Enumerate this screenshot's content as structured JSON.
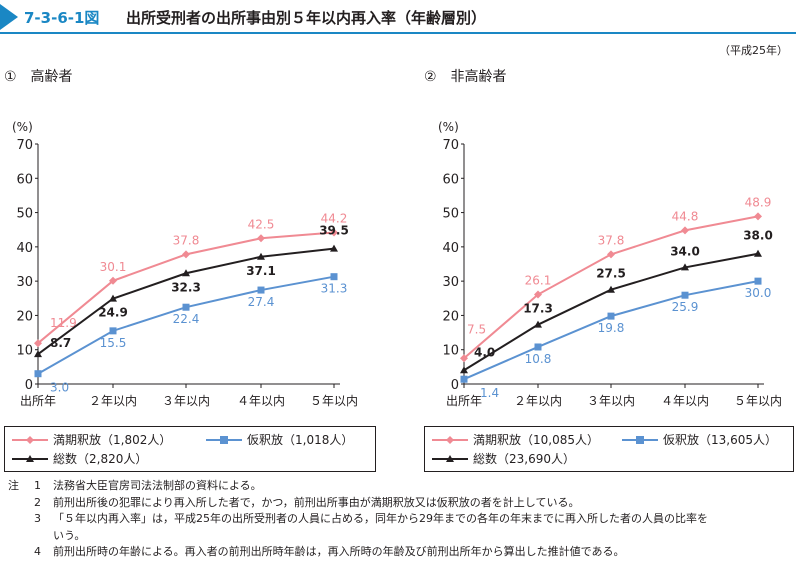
{
  "figure": {
    "number": "7-3-6-1図",
    "title": "出所受刑者の出所事由別５年以内再入率（年齢層別）",
    "year_note": "（平成25年）"
  },
  "colors": {
    "accent": "#1a87c4",
    "pink": "#f08a93",
    "blue": "#5b92d1",
    "black": "#231f20"
  },
  "chart_data": [
    {
      "type": "line",
      "panel_title": "①　高齢者",
      "ylabel": "(%)",
      "ylim": [
        0,
        70
      ],
      "yticks": [
        "0",
        "10",
        "20",
        "30",
        "40",
        "50",
        "60",
        "70"
      ],
      "categories": [
        "出所年",
        "２年以内",
        "３年以内",
        "４年以内",
        "５年以内"
      ],
      "series": [
        {
          "name": "満期釈放（1,802人）",
          "color": "pink",
          "values": [
            11.9,
            30.1,
            37.8,
            42.5,
            44.2
          ],
          "labels": [
            "11.9",
            "30.1",
            "37.8",
            "42.5",
            "44.2"
          ]
        },
        {
          "name": "仮釈放（1,018人）",
          "color": "blue",
          "values": [
            3.0,
            15.5,
            22.4,
            27.4,
            31.3
          ],
          "labels": [
            "3.0",
            "15.5",
            "22.4",
            "27.4",
            "31.3"
          ]
        },
        {
          "name": "総数（2,820人）",
          "color": "black",
          "values": [
            8.7,
            24.9,
            32.3,
            37.1,
            39.5
          ],
          "labels": [
            "8.7",
            "24.9",
            "32.3",
            "37.1",
            "39.5"
          ]
        }
      ]
    },
    {
      "type": "line",
      "panel_title": "②　非高齢者",
      "ylabel": "(%)",
      "ylim": [
        0,
        70
      ],
      "yticks": [
        "0",
        "10",
        "20",
        "30",
        "40",
        "50",
        "60",
        "70"
      ],
      "categories": [
        "出所年",
        "２年以内",
        "３年以内",
        "４年以内",
        "５年以内"
      ],
      "series": [
        {
          "name": "満期釈放（10,085人）",
          "color": "pink",
          "values": [
            7.5,
            26.1,
            37.8,
            44.8,
            48.9
          ],
          "labels": [
            "7.5",
            "26.1",
            "37.8",
            "44.8",
            "48.9"
          ]
        },
        {
          "name": "仮釈放（13,605人）",
          "color": "blue",
          "values": [
            1.4,
            10.8,
            19.8,
            25.9,
            30.0
          ],
          "labels": [
            "1.4",
            "10.8",
            "19.8",
            "25.9",
            "30.0"
          ]
        },
        {
          "name": "総数（23,690人）",
          "color": "black",
          "values": [
            4.0,
            17.3,
            27.5,
            34.0,
            38.0
          ],
          "labels": [
            "4.0",
            "17.3",
            "27.5",
            "34.0",
            "38.0"
          ]
        }
      ]
    }
  ],
  "notes": {
    "lead": "注",
    "items": [
      {
        "num": "1",
        "text": "法務省大臣官房司法法制部の資料による。"
      },
      {
        "num": "2",
        "text": "前刑出所後の犯罪により再入所した者で，かつ，前刑出所事由が満期釈放又は仮釈放の者を計上している。"
      },
      {
        "num": "3",
        "text": "「５年以内再入率」は，平成25年の出所受刑者の人員に占める，同年から29年までの各年の年末までに再入所した者の人員の比率を"
      },
      {
        "num": "",
        "text": "いう。"
      },
      {
        "num": "4",
        "text": "前刑出所時の年齢による。再入者の前刑出所時年齢は，再入所時の年齢及び前刑出所年から算出した推計値である。"
      }
    ]
  }
}
